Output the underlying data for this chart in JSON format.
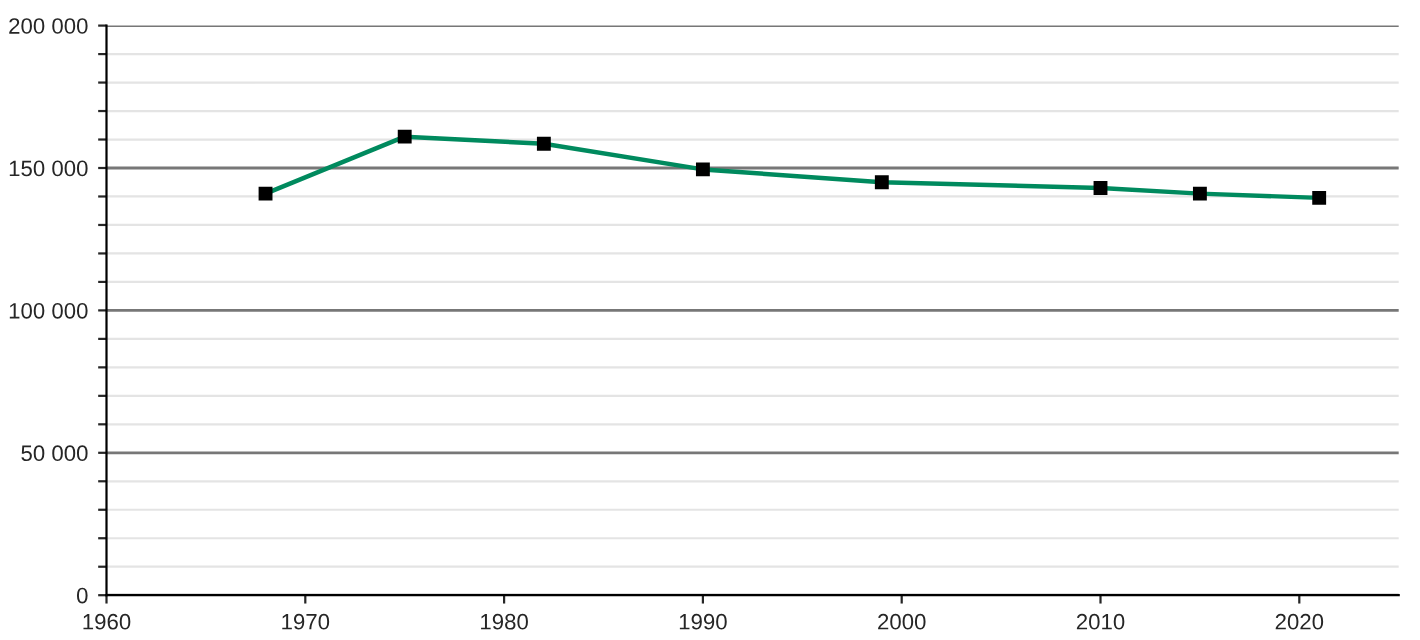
{
  "chart_data": {
    "type": "line",
    "x": [
      1968,
      1975,
      1982,
      1990,
      1999,
      2010,
      2015,
      2021
    ],
    "series": [
      {
        "color": "#008a5e",
        "values": [
          141000,
          161000,
          158500,
          149500,
          145000,
          143000,
          141000,
          139500
        ]
      }
    ],
    "xlim": [
      1960,
      2025
    ],
    "xticks": [
      1960,
      1970,
      1980,
      1990,
      2000,
      2010,
      2020
    ],
    "ylim": [
      0,
      200000
    ],
    "yticks": [
      {
        "value": 0,
        "label": "0"
      },
      {
        "value": 10000,
        "label": null
      },
      {
        "value": 20000,
        "label": null
      },
      {
        "value": 30000,
        "label": null
      },
      {
        "value": 40000,
        "label": null
      },
      {
        "value": 50000,
        "label": "50 000"
      },
      {
        "value": 60000,
        "label": null
      },
      {
        "value": 70000,
        "label": null
      },
      {
        "value": 80000,
        "label": null
      },
      {
        "value": 90000,
        "label": null
      },
      {
        "value": 100000,
        "label": "100 000"
      },
      {
        "value": 110000,
        "label": null
      },
      {
        "value": 120000,
        "label": null
      },
      {
        "value": 130000,
        "label": null
      },
      {
        "value": 140000,
        "label": null
      },
      {
        "value": 150000,
        "label": "150 000"
      },
      {
        "value": 160000,
        "label": null
      },
      {
        "value": 170000,
        "label": null
      },
      {
        "value": 180000,
        "label": null
      },
      {
        "value": 190000,
        "label": null
      },
      {
        "value": 200000,
        "label": "200 000"
      }
    ],
    "grid": "y",
    "marker": "square",
    "line_style": "solid"
  }
}
